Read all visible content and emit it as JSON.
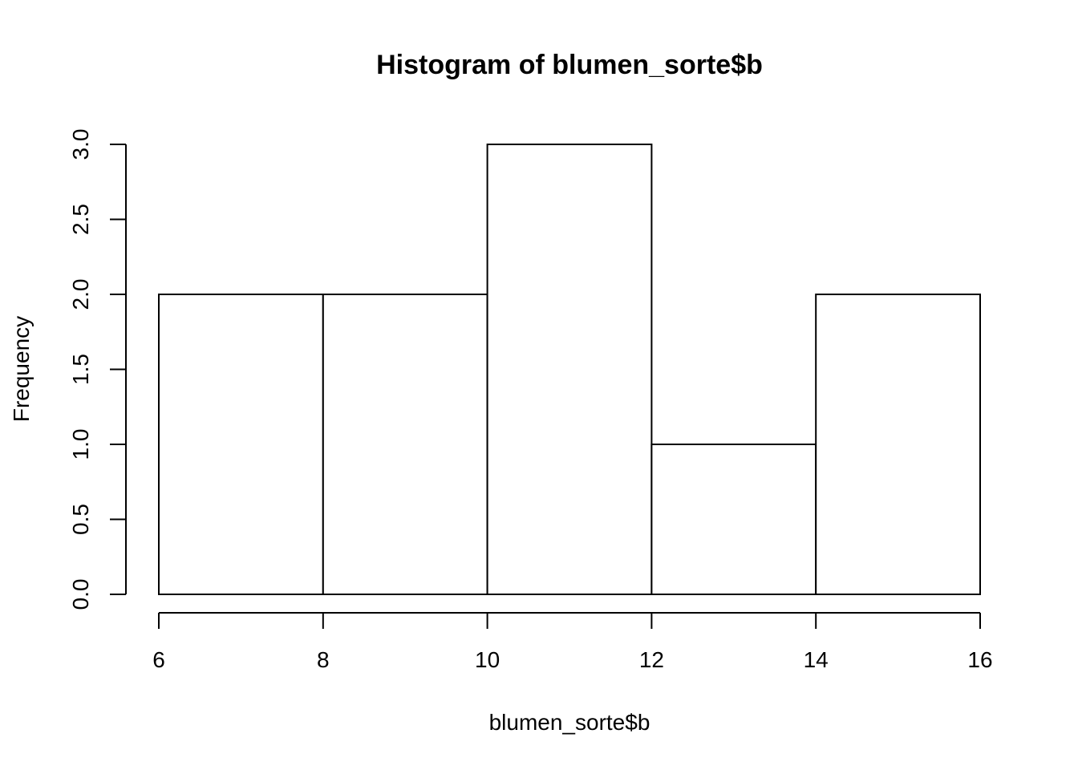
{
  "chart_data": {
    "type": "bar",
    "title": "Histogram of blumen_sorte$b",
    "xlabel": "blumen_sorte$b",
    "ylabel": "Frequency",
    "bins": [
      {
        "from": 6,
        "to": 8,
        "count": 2
      },
      {
        "from": 8,
        "to": 10,
        "count": 2
      },
      {
        "from": 10,
        "to": 12,
        "count": 3
      },
      {
        "from": 12,
        "to": 14,
        "count": 1
      },
      {
        "from": 14,
        "to": 16,
        "count": 2
      }
    ],
    "xlim": [
      6,
      16
    ],
    "ylim": [
      0,
      3
    ],
    "x_ticks": [
      "6",
      "8",
      "10",
      "12",
      "14",
      "16"
    ],
    "y_ticks": [
      "0.0",
      "0.5",
      "1.0",
      "1.5",
      "2.0",
      "2.5",
      "3.0"
    ],
    "grid": false,
    "colors": {
      "bar_fill": "#ffffff",
      "bar_stroke": "#000000",
      "axis": "#000000",
      "text": "#000000"
    }
  }
}
